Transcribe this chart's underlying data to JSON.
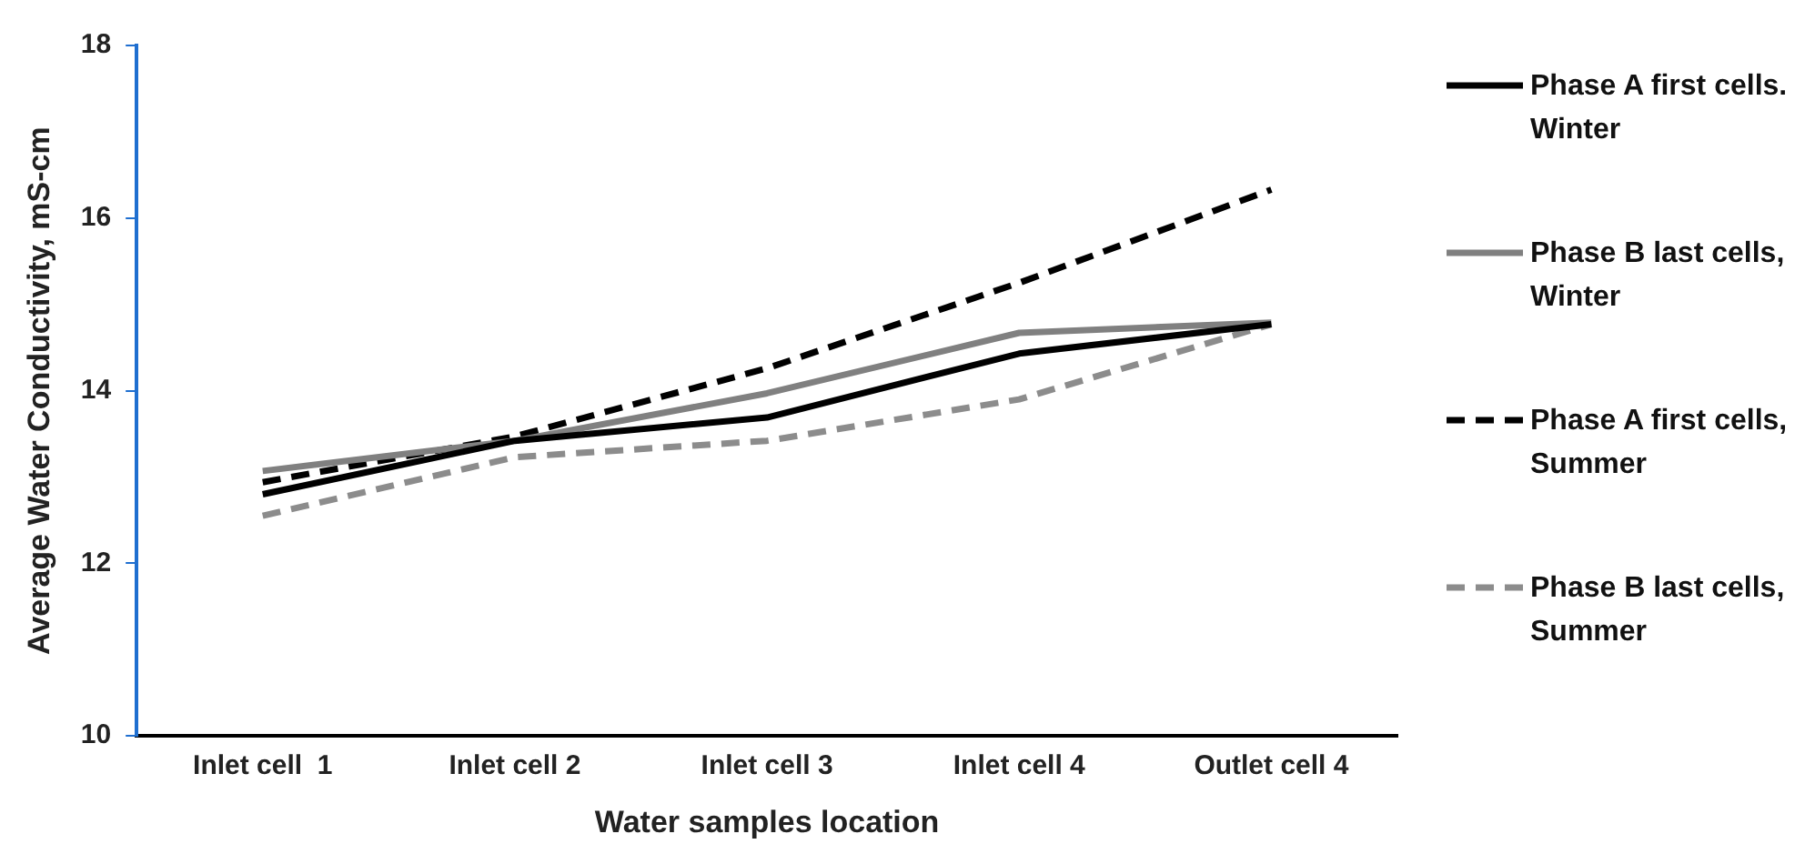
{
  "chart_data": {
    "type": "line",
    "xlabel": "Water samples location",
    "ylabel": "Average Water Conductivity, mS-cm",
    "categories": [
      "Inlet cell  1",
      "Inlet cell 2",
      "Inlet cell 3",
      "Inlet cell 4",
      "Outlet cell 4"
    ],
    "series": [
      {
        "name": "Phase A first cells. Winter",
        "color": "#000000",
        "line_style": "solid",
        "values": [
          12.8,
          13.42,
          13.69,
          14.43,
          14.77
        ]
      },
      {
        "name": "Phase B last cells, Winter",
        "color": "#808080",
        "line_style": "solid",
        "values": [
          13.07,
          13.42,
          13.97,
          14.67,
          14.79
        ]
      },
      {
        "name": "Phase A first cells, Summer",
        "color": "#000000",
        "line_style": "dashed",
        "values": [
          12.94,
          13.47,
          14.26,
          15.25,
          16.33
        ]
      },
      {
        "name": "Phase B last cells, Summer",
        "color": "#8c8c8c",
        "line_style": "dashed",
        "values": [
          12.55,
          13.23,
          13.42,
          13.9,
          14.77
        ]
      }
    ],
    "ylim": [
      10,
      18
    ],
    "yticks": [
      10,
      12,
      14,
      16,
      18
    ],
    "grid": false,
    "legend": "right",
    "marker": "none"
  }
}
